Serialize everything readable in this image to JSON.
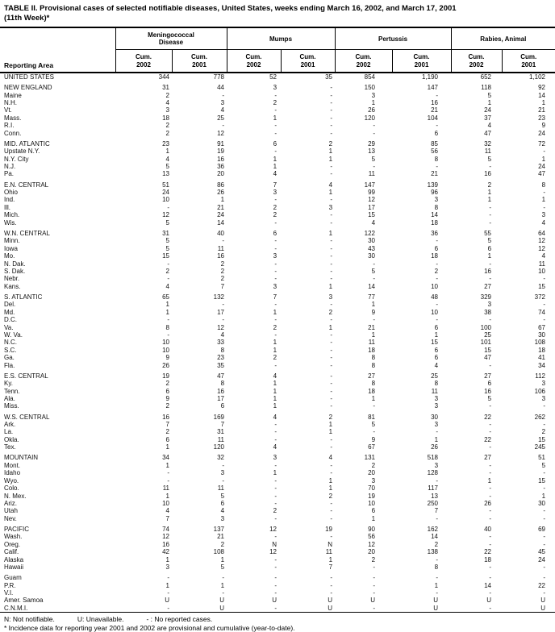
{
  "title": "TABLE II. Provisional cases of selected notifiable diseases, United States, weeks ending March 16, 2002, and March 17, 2001\n(11th Week)*",
  "header": {
    "reporting_area": "Reporting Area",
    "groups": [
      "Meningococcal\nDisease",
      "Mumps",
      "Pertussis",
      "Rabies, Animal"
    ],
    "columns": [
      "Cum.\n2002",
      "Cum.\n2001",
      "Cum.\n2002",
      "Cum.\n2001",
      "Cum.\n2002",
      "Cum.\n2001",
      "Cum.\n2002",
      "Cum.\n2001"
    ]
  },
  "sections": [
    {
      "rows": [
        {
          "a": "UNITED STATES",
          "v": [
            "344",
            "778",
            "52",
            "35",
            "854",
            "1,190",
            "652",
            "1,102"
          ]
        }
      ]
    },
    {
      "rows": [
        {
          "a": "NEW ENGLAND",
          "v": [
            "31",
            "44",
            "3",
            "-",
            "150",
            "147",
            "118",
            "92"
          ]
        },
        {
          "a": "Maine",
          "v": [
            "2",
            "-",
            "-",
            "-",
            "3",
            "-",
            "5",
            "14"
          ]
        },
        {
          "a": "N.H.",
          "v": [
            "4",
            "3",
            "2",
            "-",
            "1",
            "16",
            "1",
            "1"
          ]
        },
        {
          "a": "Vt.",
          "v": [
            "3",
            "4",
            "-",
            "-",
            "26",
            "21",
            "24",
            "21"
          ]
        },
        {
          "a": "Mass.",
          "v": [
            "18",
            "25",
            "1",
            "-",
            "120",
            "104",
            "37",
            "23"
          ]
        },
        {
          "a": "R.I.",
          "v": [
            "2",
            "-",
            "-",
            "-",
            "-",
            "-",
            "4",
            "9"
          ]
        },
        {
          "a": "Conn.",
          "v": [
            "2",
            "12",
            "-",
            "-",
            "-",
            "6",
            "47",
            "24"
          ]
        }
      ]
    },
    {
      "rows": [
        {
          "a": "MID. ATLANTIC",
          "v": [
            "23",
            "91",
            "6",
            "2",
            "29",
            "85",
            "32",
            "72"
          ]
        },
        {
          "a": "Upstate N.Y.",
          "v": [
            "1",
            "19",
            "-",
            "1",
            "13",
            "56",
            "11",
            "-"
          ]
        },
        {
          "a": "N.Y. City",
          "v": [
            "4",
            "16",
            "1",
            "1",
            "5",
            "8",
            "5",
            "1"
          ]
        },
        {
          "a": "N.J.",
          "v": [
            "5",
            "36",
            "1",
            "-",
            "-",
            "-",
            "-",
            "24"
          ]
        },
        {
          "a": "Pa.",
          "v": [
            "13",
            "20",
            "4",
            "-",
            "11",
            "21",
            "16",
            "47"
          ]
        }
      ]
    },
    {
      "rows": [
        {
          "a": "E.N. CENTRAL",
          "v": [
            "51",
            "86",
            "7",
            "4",
            "147",
            "139",
            "2",
            "8"
          ]
        },
        {
          "a": "Ohio",
          "v": [
            "24",
            "26",
            "3",
            "1",
            "99",
            "96",
            "1",
            "-"
          ]
        },
        {
          "a": "Ind.",
          "v": [
            "10",
            "1",
            "-",
            "-",
            "12",
            "3",
            "1",
            "1"
          ]
        },
        {
          "a": "Ill.",
          "v": [
            "-",
            "21",
            "2",
            "3",
            "17",
            "8",
            "-",
            "-"
          ]
        },
        {
          "a": "Mich.",
          "v": [
            "12",
            "24",
            "2",
            "-",
            "15",
            "14",
            "-",
            "3"
          ]
        },
        {
          "a": "Wis.",
          "v": [
            "5",
            "14",
            "-",
            "-",
            "4",
            "18",
            "-",
            "4"
          ]
        }
      ]
    },
    {
      "rows": [
        {
          "a": "W.N. CENTRAL",
          "v": [
            "31",
            "40",
            "6",
            "1",
            "122",
            "36",
            "55",
            "64"
          ]
        },
        {
          "a": "Minn.",
          "v": [
            "5",
            "-",
            "-",
            "-",
            "30",
            "-",
            "5",
            "12"
          ]
        },
        {
          "a": "Iowa",
          "v": [
            "5",
            "11",
            "-",
            "-",
            "43",
            "6",
            "6",
            "12"
          ]
        },
        {
          "a": "Mo.",
          "v": [
            "15",
            "16",
            "3",
            "-",
            "30",
            "18",
            "1",
            "4"
          ]
        },
        {
          "a": "N. Dak.",
          "v": [
            "-",
            "2",
            "-",
            "-",
            "-",
            "-",
            "-",
            "11"
          ]
        },
        {
          "a": "S. Dak.",
          "v": [
            "2",
            "2",
            "-",
            "-",
            "5",
            "2",
            "16",
            "10"
          ]
        },
        {
          "a": "Nebr.",
          "v": [
            "-",
            "2",
            "-",
            "-",
            "-",
            "-",
            "-",
            "-"
          ]
        },
        {
          "a": "Kans.",
          "v": [
            "4",
            "7",
            "3",
            "1",
            "14",
            "10",
            "27",
            "15"
          ]
        }
      ]
    },
    {
      "rows": [
        {
          "a": "S. ATLANTIC",
          "v": [
            "65",
            "132",
            "7",
            "3",
            "77",
            "48",
            "329",
            "372"
          ]
        },
        {
          "a": "Del.",
          "v": [
            "1",
            "-",
            "-",
            "-",
            "1",
            "-",
            "3",
            "-"
          ]
        },
        {
          "a": "Md.",
          "v": [
            "1",
            "17",
            "1",
            "2",
            "9",
            "10",
            "38",
            "74"
          ]
        },
        {
          "a": "D.C.",
          "v": [
            "-",
            "-",
            "-",
            "-",
            "-",
            "-",
            "-",
            "-"
          ]
        },
        {
          "a": "Va.",
          "v": [
            "8",
            "12",
            "2",
            "1",
            "21",
            "6",
            "100",
            "67"
          ]
        },
        {
          "a": "W. Va.",
          "v": [
            "-",
            "4",
            "-",
            "-",
            "1",
            "1",
            "25",
            "30"
          ]
        },
        {
          "a": "N.C.",
          "v": [
            "10",
            "33",
            "1",
            "-",
            "11",
            "15",
            "101",
            "108"
          ]
        },
        {
          "a": "S.C.",
          "v": [
            "10",
            "8",
            "1",
            "-",
            "18",
            "6",
            "15",
            "18"
          ]
        },
        {
          "a": "Ga.",
          "v": [
            "9",
            "23",
            "2",
            "-",
            "8",
            "6",
            "47",
            "41"
          ]
        },
        {
          "a": "Fla.",
          "v": [
            "26",
            "35",
            "-",
            "-",
            "8",
            "4",
            "-",
            "34"
          ]
        }
      ]
    },
    {
      "rows": [
        {
          "a": "E.S. CENTRAL",
          "v": [
            "19",
            "47",
            "4",
            "-",
            "27",
            "25",
            "27",
            "112"
          ]
        },
        {
          "a": "Ky.",
          "v": [
            "2",
            "8",
            "1",
            "-",
            "8",
            "8",
            "6",
            "3"
          ]
        },
        {
          "a": "Tenn.",
          "v": [
            "6",
            "16",
            "1",
            "-",
            "18",
            "11",
            "16",
            "106"
          ]
        },
        {
          "a": "Ala.",
          "v": [
            "9",
            "17",
            "1",
            "-",
            "1",
            "3",
            "5",
            "3"
          ]
        },
        {
          "a": "Miss.",
          "v": [
            "2",
            "6",
            "1",
            "-",
            "-",
            "3",
            "-",
            "-"
          ]
        }
      ]
    },
    {
      "rows": [
        {
          "a": "W.S. CENTRAL",
          "v": [
            "16",
            "169",
            "4",
            "2",
            "81",
            "30",
            "22",
            "262"
          ]
        },
        {
          "a": "Ark.",
          "v": [
            "7",
            "7",
            "-",
            "1",
            "5",
            "3",
            "-",
            "-"
          ]
        },
        {
          "a": "La.",
          "v": [
            "2",
            "31",
            "-",
            "1",
            "-",
            "-",
            "-",
            "2"
          ]
        },
        {
          "a": "Okla.",
          "v": [
            "6",
            "11",
            "-",
            "-",
            "9",
            "1",
            "22",
            "15"
          ]
        },
        {
          "a": "Tex.",
          "v": [
            "1",
            "120",
            "4",
            "-",
            "67",
            "26",
            "-",
            "245"
          ]
        }
      ]
    },
    {
      "rows": [
        {
          "a": "MOUNTAIN",
          "v": [
            "34",
            "32",
            "3",
            "4",
            "131",
            "518",
            "27",
            "51"
          ]
        },
        {
          "a": "Mont.",
          "v": [
            "1",
            "-",
            "-",
            "-",
            "2",
            "3",
            "-",
            "5"
          ]
        },
        {
          "a": "Idaho",
          "v": [
            "-",
            "3",
            "1",
            "-",
            "20",
            "128",
            "-",
            "-"
          ]
        },
        {
          "a": "Wyo.",
          "v": [
            "-",
            "-",
            "-",
            "1",
            "3",
            "-",
            "1",
            "15"
          ]
        },
        {
          "a": "Colo.",
          "v": [
            "11",
            "11",
            "-",
            "1",
            "70",
            "117",
            "-",
            "-"
          ]
        },
        {
          "a": "N. Mex.",
          "v": [
            "1",
            "5",
            "-",
            "2",
            "19",
            "13",
            "-",
            "1"
          ]
        },
        {
          "a": "Ariz.",
          "v": [
            "10",
            "6",
            "-",
            "-",
            "10",
            "250",
            "26",
            "30"
          ]
        },
        {
          "a": "Utah",
          "v": [
            "4",
            "4",
            "2",
            "-",
            "6",
            "7",
            "-",
            "-"
          ]
        },
        {
          "a": "Nev.",
          "v": [
            "7",
            "3",
            "-",
            "-",
            "1",
            "-",
            "-",
            "-"
          ]
        }
      ]
    },
    {
      "rows": [
        {
          "a": "PACIFIC",
          "v": [
            "74",
            "137",
            "12",
            "19",
            "90",
            "162",
            "40",
            "69"
          ]
        },
        {
          "a": "Wash.",
          "v": [
            "12",
            "21",
            "-",
            "-",
            "56",
            "14",
            "-",
            "-"
          ]
        },
        {
          "a": "Oreg.",
          "v": [
            "16",
            "2",
            "N",
            "N",
            "12",
            "2",
            "-",
            "-"
          ]
        },
        {
          "a": "Calif.",
          "v": [
            "42",
            "108",
            "12",
            "11",
            "20",
            "138",
            "22",
            "45"
          ]
        },
        {
          "a": "Alaska",
          "v": [
            "1",
            "1",
            "-",
            "1",
            "2",
            "-",
            "18",
            "24"
          ]
        },
        {
          "a": "Hawaii",
          "v": [
            "3",
            "5",
            "-",
            "7",
            "-",
            "8",
            "-",
            "-"
          ]
        }
      ]
    },
    {
      "rows": [
        {
          "a": "Guam",
          "v": [
            "-",
            "-",
            "-",
            "-",
            "-",
            "-",
            "-",
            "-"
          ]
        },
        {
          "a": "P.R.",
          "v": [
            "1",
            "1",
            "-",
            "-",
            "-",
            "1",
            "14",
            "22"
          ]
        },
        {
          "a": "V.I.",
          "v": [
            "-",
            "-",
            "-",
            "-",
            "-",
            "-",
            "-",
            "-"
          ]
        },
        {
          "a": "Amer. Samoa",
          "v": [
            "U",
            "U",
            "U",
            "U",
            "U",
            "U",
            "U",
            "U"
          ]
        },
        {
          "a": "C.N.M.I.",
          "v": [
            "-",
            "U",
            "-",
            "U",
            "-",
            "U",
            "-",
            "U"
          ]
        }
      ]
    }
  ],
  "footnotes": {
    "n": "N: Not notifiable.",
    "u": "U: Unavailable.",
    "dash": "- : No reported cases.",
    "asterisk": "* Incidence data for reporting year 2001 and 2002 are provisional and cumulative (year-to-date)."
  }
}
